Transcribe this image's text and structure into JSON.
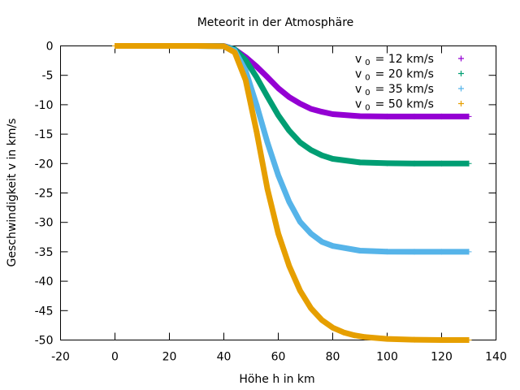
{
  "chart_data": {
    "type": "scatter",
    "title": "Meteorit in der Atmosphäre",
    "xlabel": "Höhe h in km",
    "ylabel": "Geschwindigkeit v in km/s",
    "xlim": [
      -20,
      140
    ],
    "ylim": [
      -50,
      0
    ],
    "xticks": [
      -20,
      0,
      20,
      40,
      60,
      80,
      100,
      120,
      140
    ],
    "yticks": [
      0,
      -5,
      -10,
      -15,
      -20,
      -25,
      -30,
      -35,
      -40,
      -45,
      -50
    ],
    "xtick_labels": [
      "-20",
      "0",
      "20",
      "40",
      "60",
      "80",
      "100",
      "120",
      "140"
    ],
    "ytick_labels": [
      "0",
      "-5",
      "-10",
      "-15",
      "-20",
      "-25",
      "-30",
      "-35",
      "-40",
      "-45",
      "-50"
    ],
    "grid": false,
    "legend_position": "top-right",
    "series": [
      {
        "name": "v 0 = 12 km/s",
        "legend_main": "v",
        "legend_sub": "0",
        "legend_rest": "= 12 km/s",
        "color": "#9400d3",
        "marker": "plus",
        "x": [
          0,
          30,
          40,
          44,
          48,
          52,
          56,
          60,
          64,
          68,
          72,
          76,
          80,
          90,
          100,
          110,
          120,
          130
        ],
        "y": [
          0,
          0,
          -0.02,
          -0.6,
          -1.9,
          -3.5,
          -5.3,
          -7.2,
          -8.7,
          -9.8,
          -10.7,
          -11.2,
          -11.6,
          -11.95,
          -12.0,
          -12.0,
          -12.0,
          -12.0
        ]
      },
      {
        "name": "v 0 = 20 km/s",
        "legend_main": "v",
        "legend_sub": "0",
        "legend_rest": "= 20 km/s",
        "color": "#009e73",
        "marker": "plus",
        "x": [
          0,
          30,
          40,
          44,
          48,
          52,
          56,
          60,
          64,
          68,
          72,
          76,
          80,
          90,
          100,
          110,
          120,
          130
        ],
        "y": [
          0,
          0,
          -0.04,
          -0.6,
          -2.4,
          -5.3,
          -8.6,
          -11.8,
          -14.4,
          -16.4,
          -17.7,
          -18.6,
          -19.2,
          -19.8,
          -19.95,
          -20.0,
          -20.0,
          -20.0
        ]
      },
      {
        "name": "v 0 = 35 km/s",
        "legend_main": "v",
        "legend_sub": "0",
        "legend_rest": "= 35 km/s",
        "color": "#56b4e9",
        "marker": "plus",
        "x": [
          0,
          30,
          40,
          44,
          48,
          52,
          56,
          60,
          64,
          68,
          72,
          76,
          80,
          90,
          100,
          110,
          120,
          130
        ],
        "y": [
          0,
          0,
          -0.05,
          -0.8,
          -4.2,
          -10.0,
          -16.4,
          -22.0,
          -26.5,
          -29.9,
          -31.9,
          -33.3,
          -34.0,
          -34.8,
          -34.97,
          -35.0,
          -35.0,
          -35.0
        ]
      },
      {
        "name": "v 0 = 50 km/s",
        "legend_main": "v",
        "legend_sub": "0",
        "legend_rest": "= 50 km/s",
        "color": "#e69f00",
        "marker": "plus",
        "x": [
          0,
          30,
          40,
          44,
          48,
          52,
          56,
          60,
          64,
          68,
          72,
          76,
          80,
          84,
          88,
          92,
          100,
          110,
          120,
          130
        ],
        "y": [
          0,
          0,
          -0.05,
          -1.1,
          -5.8,
          -14.5,
          -24.3,
          -31.9,
          -37.4,
          -41.6,
          -44.6,
          -46.6,
          -47.9,
          -48.7,
          -49.2,
          -49.5,
          -49.8,
          -49.95,
          -50.0,
          -50.0
        ]
      }
    ]
  }
}
